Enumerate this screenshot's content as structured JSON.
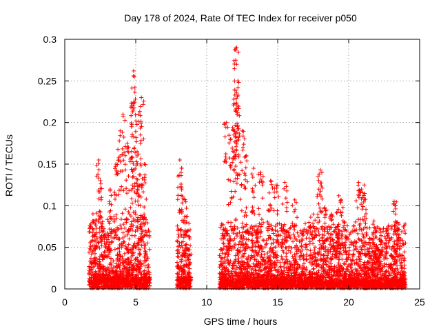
{
  "chart_data": {
    "type": "scatter",
    "title": "Day 178 of 2024, Rate Of TEC Index for receiver p050",
    "xlabel": "GPS time / hours",
    "ylabel": "ROTI / TECUs",
    "xlim": [
      0,
      25
    ],
    "ylim": [
      0,
      0.3
    ],
    "xticks": [
      0,
      5,
      10,
      15,
      20,
      25
    ],
    "yticks": [
      0,
      0.05,
      0.1,
      0.15,
      0.2,
      0.25,
      0.3
    ],
    "xtick_labels": [
      "0",
      "5",
      "10",
      "15",
      "20",
      "25"
    ],
    "ytick_labels": [
      "0",
      "0.05",
      "0.1",
      "0.15",
      "0.2",
      "0.25",
      "0.3"
    ],
    "grid": true,
    "marker": "+",
    "series": [
      {
        "name": "ROTI",
        "color": "#ff0000",
        "segments": [
          {
            "start": 1.7,
            "end": 6.0,
            "base": 0.012,
            "spread": 0.05
          },
          {
            "start": 7.9,
            "end": 8.9,
            "base": 0.012,
            "spread": 0.05
          },
          {
            "start": 10.9,
            "end": 24.0,
            "base": 0.01,
            "spread": 0.045
          }
        ],
        "highlights": [
          {
            "x": 2.4,
            "y": 0.155
          },
          {
            "x": 2.5,
            "y": 0.13
          },
          {
            "x": 2.0,
            "y": 0.08
          },
          {
            "x": 3.2,
            "y": 0.12
          },
          {
            "x": 3.6,
            "y": 0.15
          },
          {
            "x": 3.9,
            "y": 0.19
          },
          {
            "x": 4.1,
            "y": 0.21
          },
          {
            "x": 4.4,
            "y": 0.175
          },
          {
            "x": 4.7,
            "y": 0.195
          },
          {
            "x": 4.8,
            "y": 0.22
          },
          {
            "x": 4.85,
            "y": 0.262
          },
          {
            "x": 4.9,
            "y": 0.255
          },
          {
            "x": 5.2,
            "y": 0.21
          },
          {
            "x": 5.4,
            "y": 0.23
          },
          {
            "x": 5.1,
            "y": 0.165
          },
          {
            "x": 5.6,
            "y": 0.15
          },
          {
            "x": 5.3,
            "y": 0.125
          },
          {
            "x": 8.1,
            "y": 0.155
          },
          {
            "x": 8.2,
            "y": 0.14
          },
          {
            "x": 8.4,
            "y": 0.108
          },
          {
            "x": 11.4,
            "y": 0.2
          },
          {
            "x": 11.7,
            "y": 0.18
          },
          {
            "x": 11.9,
            "y": 0.228
          },
          {
            "x": 12.0,
            "y": 0.215
          },
          {
            "x": 12.1,
            "y": 0.29
          },
          {
            "x": 12.05,
            "y": 0.275
          },
          {
            "x": 12.1,
            "y": 0.27
          },
          {
            "x": 12.2,
            "y": 0.22
          },
          {
            "x": 12.5,
            "y": 0.19
          },
          {
            "x": 12.8,
            "y": 0.16
          },
          {
            "x": 13.3,
            "y": 0.145
          },
          {
            "x": 13.8,
            "y": 0.14
          },
          {
            "x": 14.5,
            "y": 0.13
          },
          {
            "x": 14.9,
            "y": 0.125
          },
          {
            "x": 15.5,
            "y": 0.128
          },
          {
            "x": 16.2,
            "y": 0.107
          },
          {
            "x": 17.5,
            "y": 0.09
          },
          {
            "x": 18.0,
            "y": 0.143
          },
          {
            "x": 17.9,
            "y": 0.12
          },
          {
            "x": 18.3,
            "y": 0.098
          },
          {
            "x": 18.8,
            "y": 0.09
          },
          {
            "x": 19.2,
            "y": 0.075
          },
          {
            "x": 19.3,
            "y": 0.112
          },
          {
            "x": 19.6,
            "y": 0.098
          },
          {
            "x": 20.7,
            "y": 0.128
          },
          {
            "x": 20.9,
            "y": 0.12
          },
          {
            "x": 21.1,
            "y": 0.125
          },
          {
            "x": 21.6,
            "y": 0.06
          },
          {
            "x": 22.0,
            "y": 0.05
          },
          {
            "x": 23.2,
            "y": 0.105
          },
          {
            "x": 23.3,
            "y": 0.09
          },
          {
            "x": 23.4,
            "y": 0.08
          }
        ]
      }
    ]
  }
}
